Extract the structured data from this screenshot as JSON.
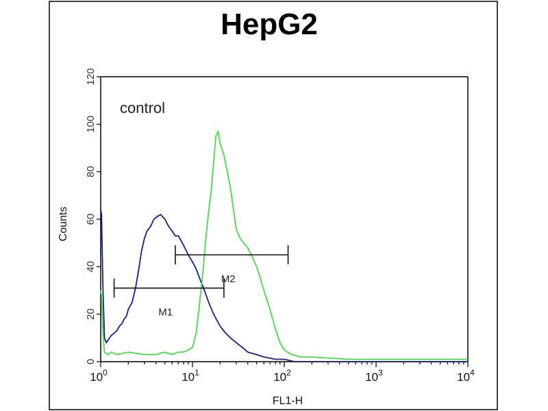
{
  "chart_data": {
    "type": "line",
    "title": "HepG2",
    "xlabel": "FL1-H",
    "ylabel": "Counts",
    "x_scale": "log",
    "xlim": [
      1,
      10000
    ],
    "ylim": [
      0,
      120
    ],
    "x_ticks": [
      {
        "base": "10",
        "exp": "0",
        "value": 1
      },
      {
        "base": "10",
        "exp": "1",
        "value": 10
      },
      {
        "base": "10",
        "exp": "2",
        "value": 100
      },
      {
        "base": "10",
        "exp": "3",
        "value": 1000
      },
      {
        "base": "10",
        "exp": "4",
        "value": 10000
      }
    ],
    "y_ticks": [
      "0",
      "20",
      "40",
      "60",
      "80",
      "100",
      "120"
    ],
    "annotation": "control",
    "markers": [
      {
        "label": "M1",
        "x_start": 1.4,
        "x_end": 22,
        "y": 31
      },
      {
        "label": "M2",
        "x_start": 6.5,
        "x_end": 110,
        "y": 45
      }
    ],
    "series": [
      {
        "color": "#1a1a8c",
        "x": [
          1.0,
          1.02,
          1.06,
          1.1,
          1.15,
          1.2,
          1.3,
          1.4,
          1.5,
          1.6,
          1.7,
          1.8,
          1.9,
          2.0,
          2.2,
          2.4,
          2.6,
          2.8,
          3.0,
          3.2,
          3.5,
          3.8,
          4.1,
          4.5,
          5.0,
          5.5,
          6.0,
          6.5,
          7.0,
          7.5,
          8.0,
          9.0,
          10.0,
          11.0,
          12.0,
          13.5,
          15.0,
          17.0,
          20.0,
          23.0,
          26.0,
          30.0,
          35.0,
          40.0,
          50.0,
          60.0,
          80.0,
          100.0,
          130.0,
          200.0,
          500.0,
          1000.0,
          3000.0,
          10000.0
        ],
        "y": [
          64,
          62,
          30,
          10,
          8,
          9,
          11,
          12,
          13,
          15,
          16,
          18,
          19,
          22,
          25,
          31,
          39,
          47,
          52,
          55,
          57,
          60,
          61,
          62,
          60,
          57,
          55,
          53,
          53,
          51,
          49,
          45,
          42,
          39,
          35,
          30,
          25,
          20,
          15,
          12,
          10,
          8,
          6,
          4,
          3,
          2,
          1,
          1,
          0,
          0,
          0,
          0,
          0,
          0
        ]
      },
      {
        "color": "#44dd44",
        "x": [
          1.0,
          1.02,
          1.06,
          1.1,
          1.2,
          1.3,
          1.5,
          2.0,
          3.0,
          4.0,
          5.0,
          6.0,
          7.0,
          8.0,
          9.0,
          10.0,
          11.0,
          12.0,
          13.0,
          14.0,
          15.0,
          16.0,
          17.0,
          18.0,
          19.0,
          20.0,
          22.0,
          24.0,
          26.0,
          28.0,
          30.0,
          33.0,
          36.0,
          40.0,
          45.0,
          50.0,
          55.0,
          60.0,
          70.0,
          80.0,
          90.0,
          100.0,
          120.0,
          150.0,
          200.0,
          500.0,
          1000.0,
          3000.0,
          10000.0
        ],
        "y": [
          30,
          28,
          12,
          4,
          3,
          4,
          3,
          4,
          3,
          3,
          4,
          3,
          4,
          4,
          5,
          6,
          12,
          25,
          38,
          52,
          63,
          72,
          84,
          95,
          97,
          92,
          87,
          80,
          73,
          64,
          56,
          52,
          50,
          48,
          44,
          40,
          35,
          30,
          22,
          14,
          8,
          5,
          3,
          2,
          2,
          1,
          1,
          1,
          1
        ]
      }
    ]
  }
}
